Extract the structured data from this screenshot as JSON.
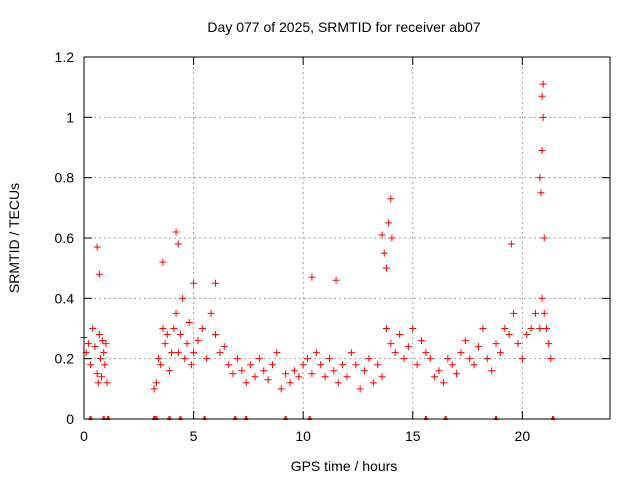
{
  "chart_data": {
    "type": "scatter",
    "title": "Day 077 of 2025, SRMTID for receiver ab07",
    "xlabel": "GPS time / hours",
    "ylabel": "SRMTID / TECUs",
    "xlim": [
      0,
      24
    ],
    "ylim": [
      0,
      1.2
    ],
    "xticks": [
      "0",
      "5",
      "10",
      "15",
      "20"
    ],
    "xtick_values": [
      0,
      5,
      10,
      15,
      20
    ],
    "yticks": [
      "0",
      "0.2",
      "0.4",
      "0.6",
      "0.8",
      "1",
      "1.2"
    ],
    "ytick_values": [
      0,
      0.2,
      0.4,
      0.6,
      0.8,
      1.0,
      1.2
    ],
    "grid": true,
    "marker": "+",
    "marker_color": "#ff0000",
    "series": [
      {
        "name": "SRMTID",
        "color": "#ff0000",
        "x": [
          0.0,
          0.1,
          0.2,
          0.3,
          0.4,
          0.5,
          0.6,
          0.65,
          0.7,
          0.75,
          0.8,
          0.85,
          0.9,
          0.95,
          1.0,
          1.05,
          3.2,
          3.3,
          3.4,
          3.5,
          3.6,
          3.7,
          3.8,
          3.9,
          4.0,
          4.1,
          4.2,
          4.3,
          4.4,
          4.5,
          4.6,
          4.7,
          4.8,
          4.9,
          5.0,
          5.2,
          5.4,
          5.6,
          5.8,
          6.0,
          6.2,
          6.4,
          6.6,
          6.8,
          7.0,
          7.2,
          7.4,
          7.6,
          7.8,
          8.0,
          8.2,
          8.4,
          8.6,
          8.8,
          9.0,
          9.2,
          9.4,
          9.6,
          9.8,
          10.0,
          10.2,
          10.4,
          10.6,
          10.8,
          11.0,
          11.2,
          11.4,
          11.6,
          11.8,
          12.0,
          12.2,
          12.4,
          12.6,
          12.8,
          13.0,
          13.2,
          13.4,
          13.6,
          13.8,
          14.0,
          14.2,
          14.4,
          14.6,
          14.8,
          15.0,
          15.2,
          15.4,
          15.6,
          15.8,
          16.0,
          16.2,
          16.4,
          16.6,
          16.8,
          17.0,
          17.2,
          17.4,
          17.6,
          17.8,
          18.0,
          18.2,
          18.4,
          18.6,
          18.8,
          19.0,
          19.2,
          19.4,
          19.6,
          19.8,
          20.0,
          20.2,
          20.4,
          20.6,
          20.8,
          20.9,
          21.0,
          21.1,
          21.2,
          21.3,
          4.2,
          4.3,
          3.6,
          5.0,
          6.0,
          10.4,
          11.5,
          13.6,
          13.7,
          13.8,
          13.9,
          14.0,
          14.05,
          19.5,
          20.8,
          20.85,
          20.9,
          20.95,
          20.9,
          20.95,
          21.0,
          0.6,
          0.7
        ],
        "y": [
          0.27,
          0.22,
          0.25,
          0.18,
          0.3,
          0.24,
          0.15,
          0.12,
          0.28,
          0.2,
          0.14,
          0.26,
          0.22,
          0.18,
          0.25,
          0.12,
          0.1,
          0.12,
          0.2,
          0.18,
          0.3,
          0.25,
          0.28,
          0.16,
          0.22,
          0.3,
          0.35,
          0.22,
          0.28,
          0.4,
          0.2,
          0.25,
          0.32,
          0.18,
          0.22,
          0.26,
          0.3,
          0.2,
          0.35,
          0.28,
          0.22,
          0.24,
          0.18,
          0.15,
          0.2,
          0.16,
          0.12,
          0.18,
          0.14,
          0.2,
          0.16,
          0.13,
          0.18,
          0.22,
          0.1,
          0.15,
          0.12,
          0.16,
          0.14,
          0.18,
          0.2,
          0.15,
          0.22,
          0.18,
          0.14,
          0.2,
          0.16,
          0.12,
          0.18,
          0.14,
          0.22,
          0.18,
          0.1,
          0.16,
          0.2,
          0.12,
          0.18,
          0.14,
          0.3,
          0.25,
          0.22,
          0.28,
          0.2,
          0.24,
          0.3,
          0.18,
          0.26,
          0.22,
          0.2,
          0.14,
          0.16,
          0.12,
          0.2,
          0.18,
          0.15,
          0.22,
          0.26,
          0.2,
          0.18,
          0.24,
          0.3,
          0.2,
          0.16,
          0.25,
          0.22,
          0.3,
          0.28,
          0.35,
          0.25,
          0.2,
          0.28,
          0.3,
          0.35,
          0.3,
          0.4,
          0.35,
          0.3,
          0.25,
          0.2,
          0.62,
          0.58,
          0.52,
          0.45,
          0.45,
          0.47,
          0.46,
          0.61,
          0.55,
          0.5,
          0.65,
          0.73,
          0.6,
          0.58,
          0.8,
          0.75,
          0.89,
          1.0,
          1.07,
          1.11,
          0.6,
          0.57,
          0.48
        ]
      }
    ],
    "rug_x": [
      0.3,
      0.9,
      1.1,
      3.2,
      3.3,
      3.9,
      4.4,
      5.5,
      6.9,
      7.4,
      9.2,
      10.3,
      15.6,
      16.5,
      18.8,
      21.4
    ]
  }
}
